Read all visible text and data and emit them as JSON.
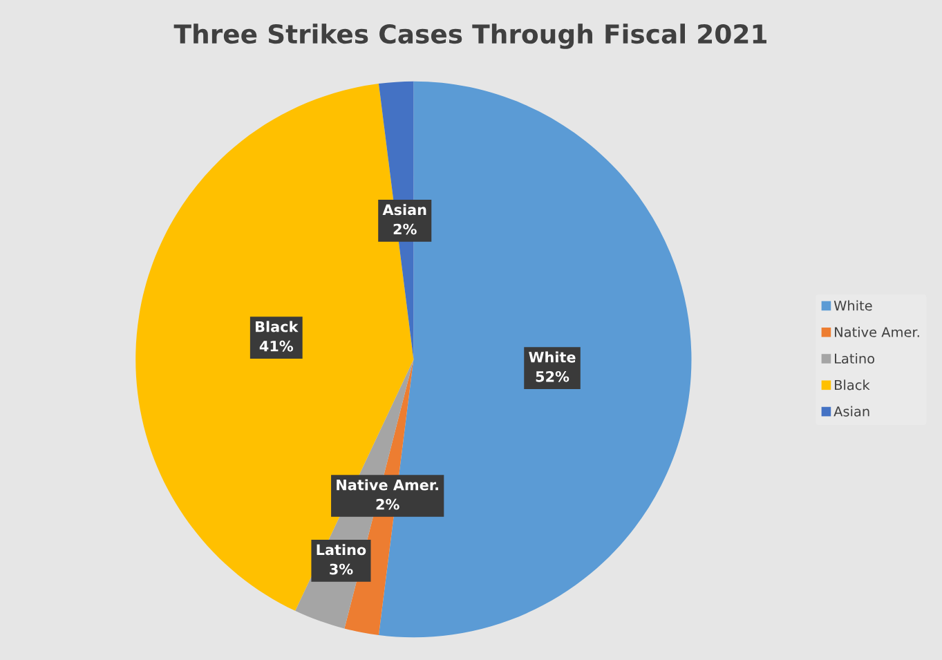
{
  "chart_data": {
    "type": "pie",
    "title": "Three Strikes Cases Through Fiscal 2021",
    "categories": [
      "White",
      "Native Amer.",
      "Latino",
      "Black",
      "Asian"
    ],
    "values": [
      52,
      2,
      3,
      41,
      2
    ],
    "colors": [
      "#5b9bd5",
      "#ed7d31",
      "#a5a5a5",
      "#ffc000",
      "#4472c4"
    ],
    "value_labels": [
      "52%",
      "2%",
      "3%",
      "41%",
      "2%"
    ],
    "legend": "right"
  }
}
